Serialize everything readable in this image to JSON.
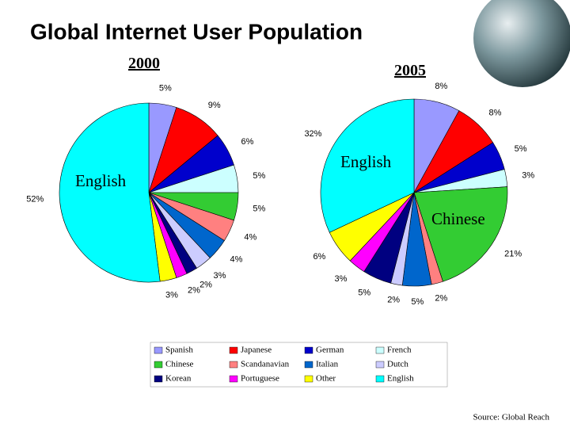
{
  "title": "Global Internet User Population",
  "source": "Source: Global Reach",
  "chart_data": [
    {
      "type": "pie",
      "title": "2000",
      "categories": [
        "Spanish",
        "Japanese",
        "German",
        "French",
        "Chinese",
        "Scandanavian",
        "Italian",
        "Dutch",
        "Korean",
        "Portuguese",
        "Other",
        "English"
      ],
      "values": [
        5,
        9,
        6,
        5,
        5,
        4,
        4,
        3,
        2,
        2,
        3,
        52
      ],
      "value_labels": [
        "5%",
        "9%",
        "6%",
        "5%",
        "5%",
        "4%",
        "4%",
        "3%",
        "2%",
        "2%",
        "3%",
        "52%"
      ],
      "colors": [
        "#9999ff",
        "#ff0000",
        "#0000cc",
        "#ccffff",
        "#33cc33",
        "#ff8080",
        "#0066cc",
        "#ccccff",
        "#000080",
        "#ff00ff",
        "#ffff00",
        "#00ffff"
      ],
      "annotations": [
        "English"
      ]
    },
    {
      "type": "pie",
      "title": "2005",
      "categories": [
        "Spanish",
        "Japanese",
        "German",
        "French",
        "Chinese",
        "Scandanavian",
        "Italian",
        "Dutch",
        "Korean",
        "Portuguese",
        "Other",
        "English"
      ],
      "values": [
        8,
        8,
        5,
        3,
        21,
        2,
        5,
        2,
        5,
        3,
        6,
        32
      ],
      "value_labels": [
        "8%",
        "8%",
        "5%",
        "3%",
        "21%",
        "2%",
        "5%",
        "2%",
        "5%",
        "3%",
        "6%",
        "32%"
      ],
      "colors": [
        "#9999ff",
        "#ff0000",
        "#0000cc",
        "#ccffff",
        "#33cc33",
        "#ff8080",
        "#0066cc",
        "#ccccff",
        "#000080",
        "#ff00ff",
        "#ffff00",
        "#00ffff"
      ],
      "annotations": [
        "English",
        "Chinese"
      ]
    }
  ]
}
